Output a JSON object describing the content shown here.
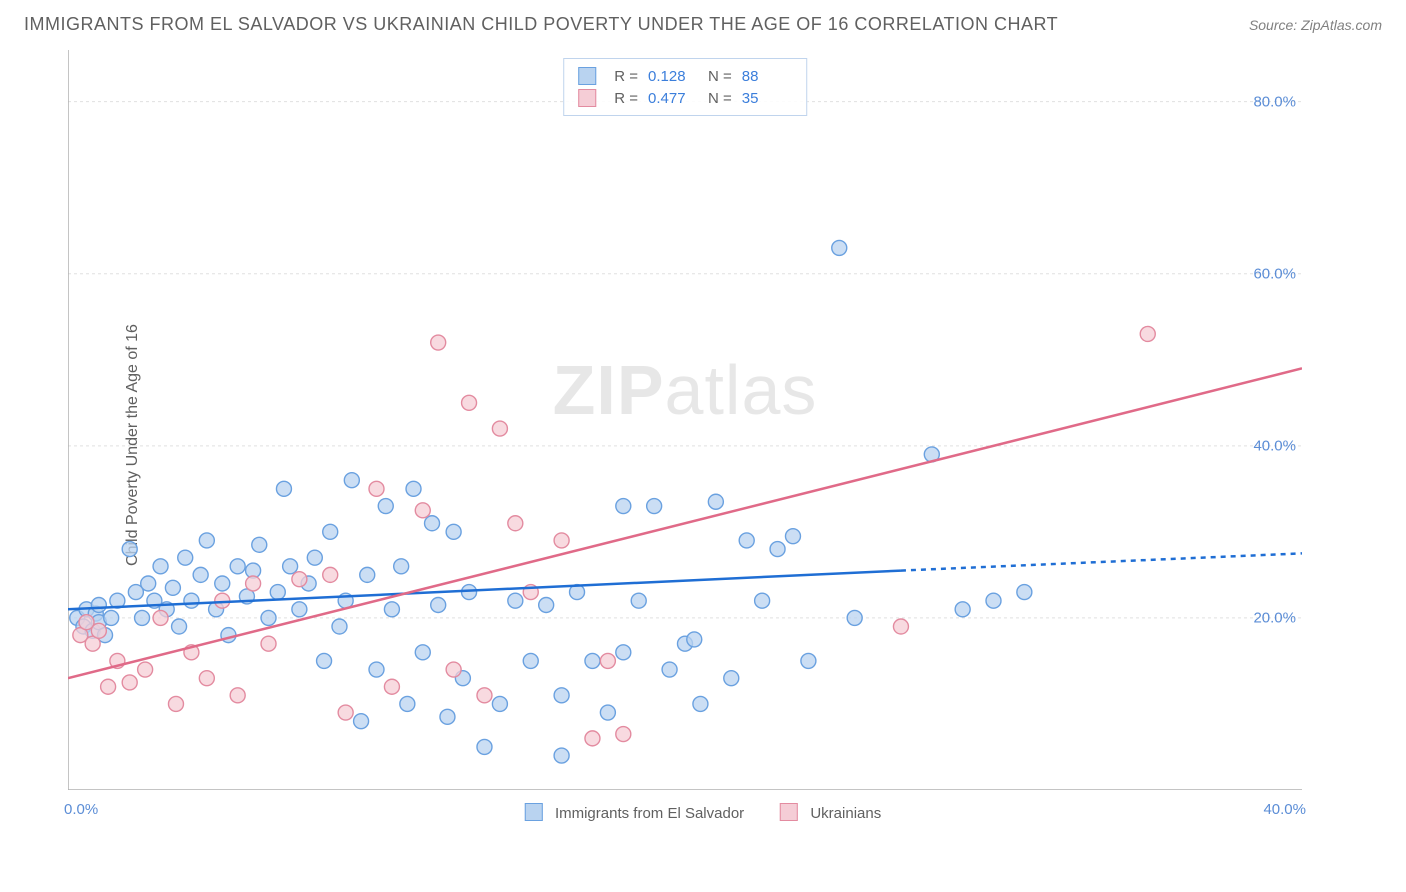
{
  "header": {
    "title": "IMMIGRANTS FROM EL SALVADOR VS UKRAINIAN CHILD POVERTY UNDER THE AGE OF 16 CORRELATION CHART",
    "source": "Source: ZipAtlas.com"
  },
  "ylabel": "Child Poverty Under the Age of 16",
  "watermark": {
    "bold": "ZIP",
    "light": "atlas"
  },
  "chart": {
    "type": "scatter",
    "xmin": 0,
    "xmax": 40,
    "ymin": 0,
    "ymax": 86,
    "grid_color": "#e0e0e0",
    "axis_color": "#b0b0b0",
    "background_color": "#ffffff",
    "yticks": [
      {
        "v": 20,
        "label": "20.0%"
      },
      {
        "v": 40,
        "label": "40.0%"
      },
      {
        "v": 60,
        "label": "60.0%"
      },
      {
        "v": 80,
        "label": "80.0%"
      }
    ],
    "xtick_labels": {
      "min": "0.0%",
      "max": "40.0%"
    },
    "xticks_minor": [
      5,
      10,
      15,
      20,
      25,
      30,
      35
    ],
    "series": [
      {
        "key": "el_salvador",
        "label": "Immigrants from El Salvador",
        "fill": "#b9d3f0",
        "stroke": "#6aa1e0",
        "r_label": "R =",
        "r_value": "0.128",
        "n_label": "N =",
        "n_value": "88",
        "trend": {
          "x1": 0,
          "y1": 21,
          "x2": 27,
          "y2": 25.5,
          "ext_x2": 40,
          "ext_y2": 27.5,
          "color": "#1f6ed4",
          "width": 2.5,
          "dash": "5,5"
        },
        "points": [
          [
            0.3,
            20
          ],
          [
            0.5,
            19
          ],
          [
            0.6,
            21
          ],
          [
            0.8,
            18.5
          ],
          [
            0.9,
            20.5
          ],
          [
            1.0,
            19.5
          ],
          [
            1.0,
            21.5
          ],
          [
            1.2,
            18
          ],
          [
            1.4,
            20
          ],
          [
            1.6,
            22
          ],
          [
            2.0,
            28
          ],
          [
            2.2,
            23
          ],
          [
            2.4,
            20
          ],
          [
            2.6,
            24
          ],
          [
            2.8,
            22
          ],
          [
            3.0,
            26
          ],
          [
            3.2,
            21
          ],
          [
            3.4,
            23.5
          ],
          [
            3.6,
            19
          ],
          [
            3.8,
            27
          ],
          [
            4.0,
            22
          ],
          [
            4.3,
            25
          ],
          [
            4.5,
            29
          ],
          [
            4.8,
            21
          ],
          [
            5.0,
            24
          ],
          [
            5.2,
            18
          ],
          [
            5.5,
            26
          ],
          [
            5.8,
            22.5
          ],
          [
            6.0,
            25.5
          ],
          [
            6.2,
            28.5
          ],
          [
            6.5,
            20
          ],
          [
            6.8,
            23
          ],
          [
            7.0,
            35
          ],
          [
            7.2,
            26
          ],
          [
            7.5,
            21
          ],
          [
            7.8,
            24
          ],
          [
            8.0,
            27
          ],
          [
            8.3,
            15
          ],
          [
            8.5,
            30
          ],
          [
            8.8,
            19
          ],
          [
            9.0,
            22
          ],
          [
            9.2,
            36
          ],
          [
            9.5,
            8
          ],
          [
            9.7,
            25
          ],
          [
            10.0,
            14
          ],
          [
            10.3,
            33
          ],
          [
            10.5,
            21
          ],
          [
            10.8,
            26
          ],
          [
            11.0,
            10
          ],
          [
            11.2,
            35
          ],
          [
            11.5,
            16
          ],
          [
            11.8,
            31
          ],
          [
            12.0,
            21.5
          ],
          [
            12.3,
            8.5
          ],
          [
            12.5,
            30
          ],
          [
            12.8,
            13
          ],
          [
            13.0,
            23
          ],
          [
            13.5,
            5
          ],
          [
            14.0,
            10
          ],
          [
            14.5,
            22
          ],
          [
            15.0,
            15
          ],
          [
            15.5,
            21.5
          ],
          [
            16.0,
            4
          ],
          [
            16.0,
            11
          ],
          [
            16.5,
            23
          ],
          [
            17.0,
            15
          ],
          [
            17.5,
            9
          ],
          [
            18.0,
            33
          ],
          [
            18.0,
            16
          ],
          [
            18.5,
            22
          ],
          [
            19.0,
            33
          ],
          [
            19.5,
            14
          ],
          [
            20.0,
            17
          ],
          [
            20.3,
            17.5
          ],
          [
            20.5,
            10
          ],
          [
            21.0,
            33.5
          ],
          [
            21.5,
            13
          ],
          [
            22.0,
            29
          ],
          [
            22.5,
            22
          ],
          [
            23.0,
            28
          ],
          [
            23.5,
            29.5
          ],
          [
            24.0,
            15
          ],
          [
            25.0,
            63
          ],
          [
            25.5,
            20
          ],
          [
            28.0,
            39
          ],
          [
            29.0,
            21
          ],
          [
            30.0,
            22
          ],
          [
            31.0,
            23
          ]
        ]
      },
      {
        "key": "ukrainians",
        "label": "Ukrainians",
        "fill": "#f5cdd6",
        "stroke": "#e38ba0",
        "r_label": "R =",
        "r_value": "0.477",
        "n_label": "N =",
        "n_value": "35",
        "trend": {
          "x1": 0,
          "y1": 13,
          "x2": 40,
          "y2": 49,
          "color": "#e06a88",
          "width": 2.5
        },
        "points": [
          [
            0.4,
            18
          ],
          [
            0.6,
            19.5
          ],
          [
            0.8,
            17
          ],
          [
            1.0,
            18.5
          ],
          [
            1.3,
            12
          ],
          [
            1.6,
            15
          ],
          [
            2.0,
            12.5
          ],
          [
            2.5,
            14
          ],
          [
            3.0,
            20
          ],
          [
            3.5,
            10
          ],
          [
            4.0,
            16
          ],
          [
            4.5,
            13
          ],
          [
            5.0,
            22
          ],
          [
            5.5,
            11
          ],
          [
            6.0,
            24
          ],
          [
            6.5,
            17
          ],
          [
            7.5,
            24.5
          ],
          [
            8.5,
            25
          ],
          [
            9.0,
            9
          ],
          [
            10.0,
            35
          ],
          [
            10.5,
            12
          ],
          [
            11.5,
            32.5
          ],
          [
            12.0,
            52
          ],
          [
            12.5,
            14
          ],
          [
            13.0,
            45
          ],
          [
            13.5,
            11
          ],
          [
            14.0,
            42
          ],
          [
            14.5,
            31
          ],
          [
            15.0,
            23
          ],
          [
            16.0,
            29
          ],
          [
            17.0,
            6
          ],
          [
            17.5,
            15
          ],
          [
            18.0,
            6.5
          ],
          [
            27.0,
            19
          ],
          [
            35.0,
            53
          ]
        ]
      }
    ]
  },
  "colors": {
    "tick_text": "#5b8dd6",
    "label_text": "#606060"
  }
}
